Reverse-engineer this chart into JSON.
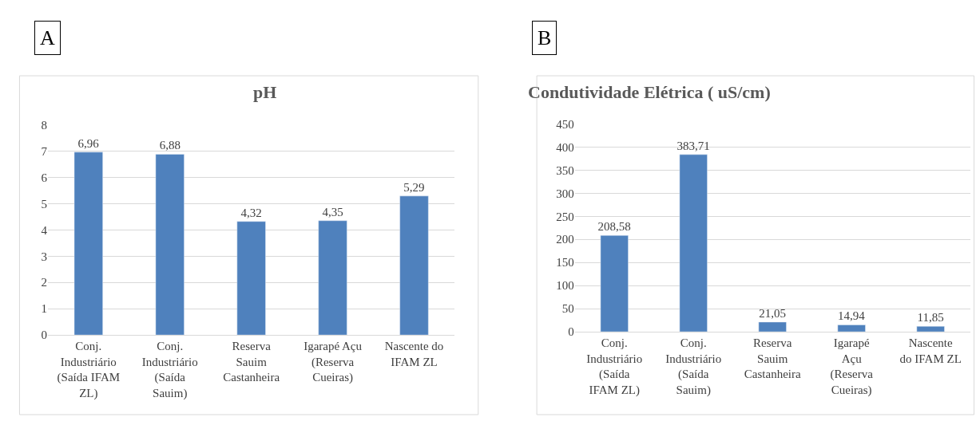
{
  "chart_data": [
    {
      "type": "bar",
      "title": "pH",
      "annotations": [
        "A"
      ],
      "categories": [
        "Conj. Industriário (Saída IFAM ZL)",
        "Conj. Industriário (Saída Sauim)",
        "Reserva Sauim Castanheira",
        "Igarapé Açu (Reserva Cueiras)",
        "Nascente do IFAM ZL"
      ],
      "values": [
        6.96,
        6.88,
        4.32,
        4.35,
        5.29
      ],
      "value_labels": [
        "6,96",
        "6,88",
        "4,32",
        "4,35",
        "5,29"
      ],
      "color": "#4f81bd",
      "ylim": [
        0,
        8
      ],
      "yticks": [
        0,
        1,
        2,
        3,
        4,
        5,
        6,
        7,
        8
      ],
      "grid": "y",
      "legend": false
    },
    {
      "type": "bar",
      "title": "Condutividade Elétrica ( uS/cm)",
      "annotations": [
        "B"
      ],
      "categories": [
        "Conj. Industriário (Saída IFAM ZL)",
        "Conj. Industriário (Saída Sauim)",
        "Reserva Sauim Castanheira",
        "Igarapé Açu (Reserva Cueiras)",
        "Nascente do IFAM ZL"
      ],
      "values": [
        208.58,
        383.71,
        21.05,
        14.94,
        11.85
      ],
      "value_labels": [
        "208,58",
        "383,71",
        "21,05",
        "14,94",
        "11,85"
      ],
      "color": "#4f81bd",
      "ylim": [
        0,
        450
      ],
      "yticks": [
        0,
        50,
        100,
        150,
        200,
        250,
        300,
        350,
        400,
        450
      ],
      "grid": "y",
      "legend": false
    }
  ]
}
